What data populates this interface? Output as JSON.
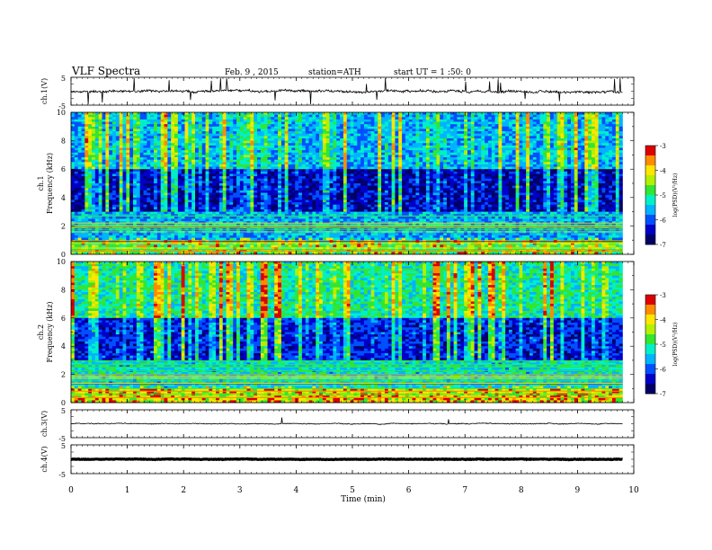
{
  "header": {
    "title": "VLF  Spectra",
    "date": "Feb. 9  , 2015",
    "station": "station=ATH",
    "start": "start  UT  =   1  :50: 0"
  },
  "chart_data": [
    {
      "type": "line",
      "id": "ch1-waveform",
      "ylabel": "ch.1(V)",
      "yticks": [
        "5",
        "-5"
      ],
      "ylim": [
        -5,
        5
      ],
      "xlim": [
        0,
        10
      ],
      "trace_baseline": 0,
      "color": "#000000"
    },
    {
      "type": "heatmap",
      "id": "ch1-spectrogram",
      "ylabel": "ch.1\nFrequency  (kHz)",
      "yticks": [
        "0",
        "2",
        "4",
        "6",
        "8",
        "10"
      ],
      "ylim": [
        0,
        10
      ],
      "xlim": [
        0,
        9.8
      ],
      "colorbar": {
        "label": "log(PSD)(V²/Hz)",
        "ticks": [
          "-3",
          "-4",
          "-5",
          "-6",
          "-7"
        ],
        "range": [
          -7,
          -3
        ]
      }
    },
    {
      "type": "heatmap",
      "id": "ch2-spectrogram",
      "ylabel": "ch.2\nFrequency  (kHz)",
      "yticks": [
        "0",
        "2",
        "4",
        "6",
        "8",
        "10"
      ],
      "ylim": [
        0,
        10
      ],
      "xlim": [
        0,
        9.8
      ],
      "colorbar": {
        "label": "log(PSD)(V²/Hz)",
        "ticks": [
          "-3",
          "-4",
          "-5",
          "-6",
          "-7"
        ],
        "range": [
          -7,
          -3
        ]
      }
    },
    {
      "type": "line",
      "id": "ch3-waveform",
      "ylabel": "ch.3(V)",
      "yticks": [
        "5",
        "-5"
      ],
      "ylim": [
        -5,
        5
      ],
      "xlim": [
        0,
        10
      ],
      "trace_baseline": 0
    },
    {
      "type": "line",
      "id": "ch4-waveform",
      "ylabel": "ch.4(V)",
      "yticks": [
        "5",
        "-5"
      ],
      "ylim": [
        -5,
        5
      ],
      "xlim": [
        0,
        10
      ],
      "trace_baseline": 0
    }
  ],
  "xaxis": {
    "label": "Time  (min)",
    "ticks": [
      "0",
      "1",
      "2",
      "3",
      "4",
      "5",
      "6",
      "7",
      "8",
      "9",
      "10"
    ],
    "range": [
      0,
      10
    ]
  },
  "colormap": [
    "#000066",
    "#0000c8",
    "#0050ff",
    "#00b4ff",
    "#00f0c8",
    "#32e632",
    "#b4f000",
    "#ffe600",
    "#ff8c00",
    "#dc0000",
    "#ffffff"
  ]
}
